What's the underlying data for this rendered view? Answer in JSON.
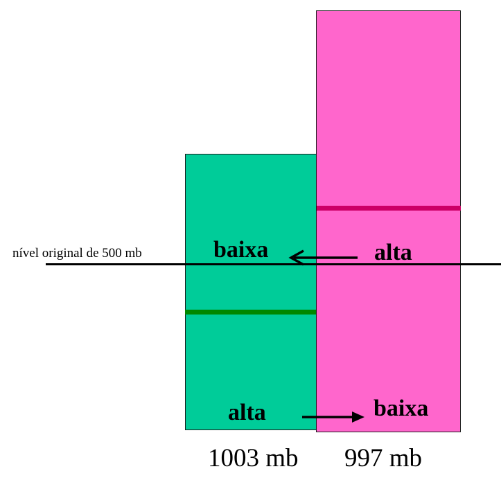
{
  "colors": {
    "left_column": "#00cc99",
    "right_column": "#ff66cc",
    "left_band": "#008800",
    "right_band": "#cc0066"
  },
  "reference_level": {
    "label": "nível original de 500 mb"
  },
  "left_column": {
    "pressure_label": "1003 mb",
    "upper_label": "baixa",
    "lower_label": "alta"
  },
  "right_column": {
    "pressure_label": "997 mb",
    "upper_label": "alta",
    "lower_label": "baixa"
  },
  "arrows": {
    "upper": "right-to-left",
    "lower": "left-to-right"
  }
}
